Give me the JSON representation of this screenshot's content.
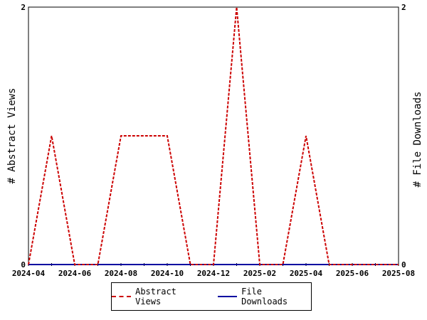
{
  "chart_data": {
    "type": "line",
    "x": [
      "2024-04",
      "2024-05",
      "2024-06",
      "2024-07",
      "2024-08",
      "2024-09",
      "2024-10",
      "2024-11",
      "2024-12",
      "2025-01",
      "2025-02",
      "2025-03",
      "2025-04",
      "2025-05",
      "2025-06",
      "2025-07",
      "2025-08"
    ],
    "x_tick_labels": [
      "2024-04",
      "2024-06",
      "2024-08",
      "2024-10",
      "2024-12",
      "2025-02",
      "2025-04",
      "2025-06",
      "2025-08"
    ],
    "series": [
      {
        "name": "Abstract Views",
        "axis": "left",
        "color": "#cc0000",
        "style": "dashed",
        "values": [
          0,
          1,
          0,
          0,
          1,
          1,
          1,
          0,
          0,
          2,
          0,
          0,
          1,
          0,
          0,
          0,
          0
        ]
      },
      {
        "name": "File Downloads",
        "axis": "right",
        "color": "#0000a0",
        "style": "solid",
        "values": [
          0,
          0,
          0,
          0,
          0,
          0,
          0,
          0,
          0,
          0,
          0,
          0,
          0,
          0,
          0,
          0,
          0
        ]
      }
    ],
    "ylabel_left": "# Abstract Views",
    "ylabel_right": "# File Downloads",
    "ylim": [
      0,
      2
    ],
    "y_ticks_left": [
      "0",
      "2"
    ],
    "y_ticks_right": [
      "0",
      "2"
    ],
    "grid": false,
    "legend_position": "bottom-center"
  }
}
